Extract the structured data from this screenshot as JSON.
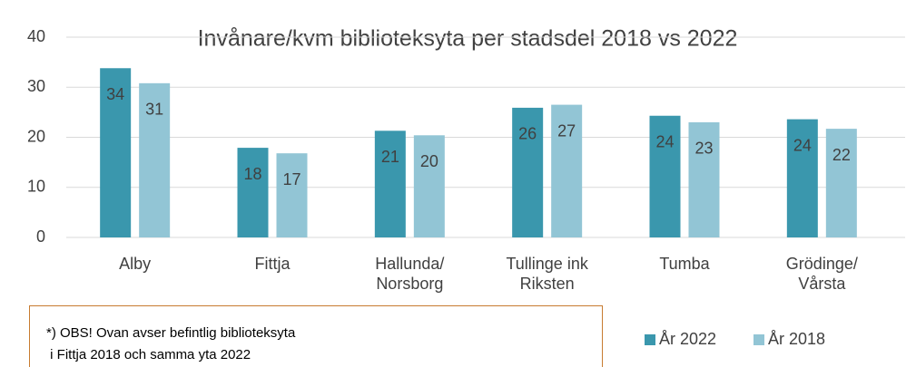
{
  "chart_data": {
    "type": "bar",
    "title": "Invånare/kvm biblioteksyta per stadsdel 2018 vs 2022",
    "categories": [
      "Alby",
      "Fittja",
      "Hallunda/\nNorsborg",
      "Tullinge ink\nRiksten",
      "Tumba",
      "Grödinge/\nVårsta"
    ],
    "series": [
      {
        "name": "År 2022",
        "color": "#3a97ad",
        "values": [
          33.8,
          17.9,
          21.3,
          25.9,
          24.3,
          23.6
        ],
        "value_labels": [
          "34",
          "18",
          "21",
          "26",
          "24",
          "24"
        ]
      },
      {
        "name": "År 2018",
        "color": "#92c5d5",
        "values": [
          30.8,
          16.8,
          20.4,
          26.5,
          23.0,
          21.7
        ],
        "value_labels": [
          "31",
          "17",
          "20",
          "27",
          "23",
          "22"
        ]
      }
    ],
    "ylim": [
      0,
      40
    ],
    "yticks": [
      0,
      10,
      20,
      30,
      40
    ],
    "grid": true,
    "legend": "bottom-right",
    "annotation": "*) OBS! Ovan avser befintlig biblioteksyta\n i Fittja 2018 och samma yta 2022"
  }
}
